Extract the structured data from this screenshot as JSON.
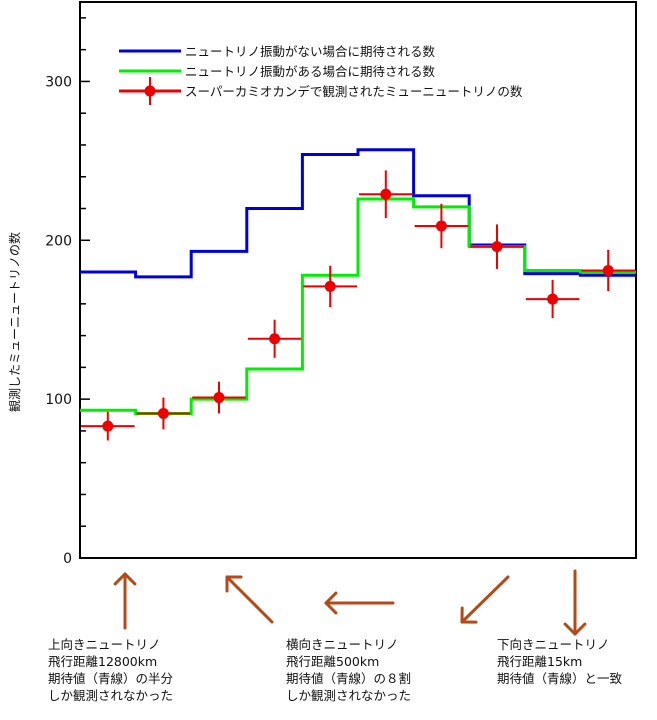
{
  "chart_data": {
    "type": "line",
    "ylabel": "観測したミューニュートリノの数",
    "ylim": [
      0,
      350
    ],
    "yticks": [
      0,
      100,
      200,
      300
    ],
    "bin_edges": [
      -1.0,
      -0.8,
      -0.6,
      -0.4,
      -0.2,
      0.0,
      0.2,
      0.4,
      0.6,
      0.8,
      1.0
    ],
    "legend": "top-left",
    "series": [
      {
        "name": "ニュートリノ振動がない場合に期待される数",
        "style": "step",
        "color": "#0000dd",
        "values": [
          180,
          177,
          193,
          220,
          254,
          257,
          228,
          197,
          179,
          178
        ]
      },
      {
        "name": "ニュートリノ振動がある場合に期待される数",
        "style": "step",
        "color": "#00ee00",
        "values": [
          93,
          91,
          100,
          119,
          178,
          226,
          221,
          196,
          181,
          180
        ]
      },
      {
        "name": "スーパーカミオカンデで観測されたミューニュートリノの数",
        "style": "points-with-errors",
        "color": "#ee0000",
        "x": [
          -0.9,
          -0.7,
          -0.5,
          -0.3,
          -0.1,
          0.1,
          0.3,
          0.5,
          0.7,
          0.9
        ],
        "values": [
          83,
          91,
          101,
          138,
          171,
          229,
          209,
          196,
          163,
          181
        ],
        "errors": [
          9,
          10,
          10,
          12,
          13,
          15,
          14,
          14,
          12,
          13
        ]
      }
    ]
  },
  "annotations": [
    {
      "lines": [
        "上向きニュートリノ",
        "飛行距離12800km",
        "期待値（青線）の半分",
        "しか観測されなかった"
      ]
    },
    {
      "lines": [
        "横向きニュートリノ",
        "飛行距離500km",
        "期待値（青線）の８割",
        "しか観測されなかった"
      ]
    },
    {
      "lines": [
        "下向きニュートリノ",
        "飛行距離15km",
        "期待値（青線）と一致"
      ]
    }
  ],
  "colors": {
    "arrow": "#b34a17",
    "frame": "#000000"
  }
}
